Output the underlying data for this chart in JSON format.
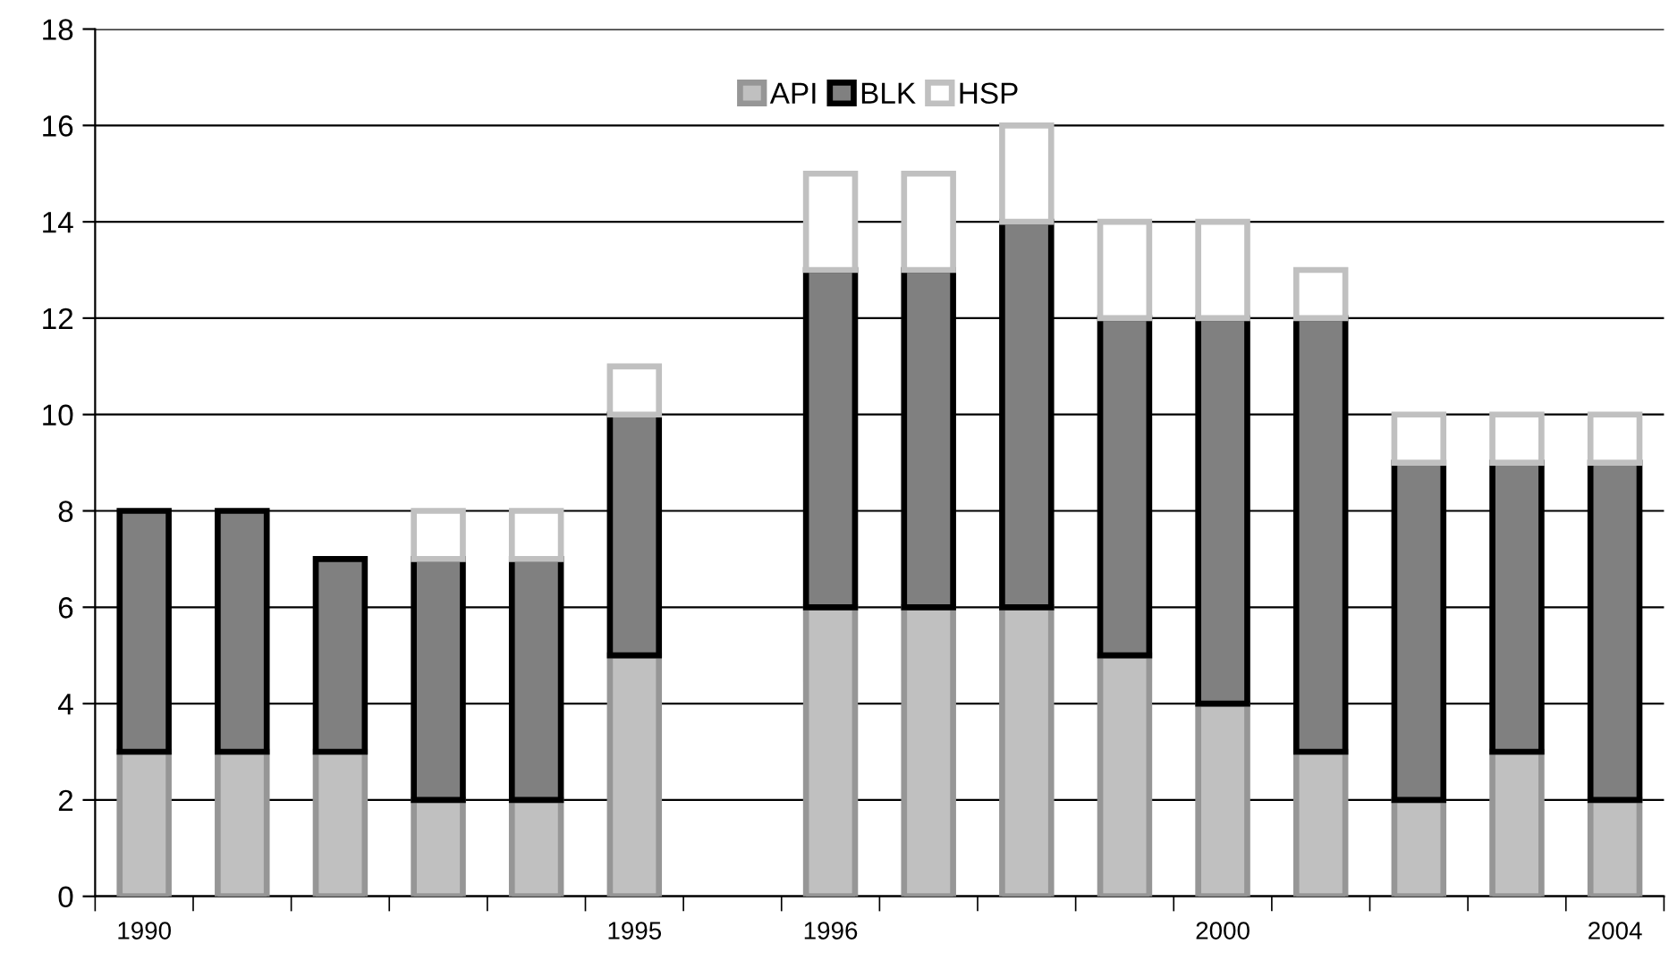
{
  "chart_data": {
    "type": "bar",
    "stacked": true,
    "categories": [
      "1990",
      null,
      null,
      null,
      null,
      "1995",
      null,
      "1996",
      null,
      null,
      null,
      "2000",
      null,
      null,
      null,
      "2004"
    ],
    "series": [
      {
        "name": "API",
        "color": "#c0c0c0",
        "values": [
          3,
          3,
          3,
          2,
          2,
          5,
          null,
          6,
          6,
          6,
          5,
          4,
          3,
          2,
          3,
          2
        ]
      },
      {
        "name": "BLK",
        "color": "#808080",
        "values": [
          5,
          5,
          4,
          5,
          5,
          5,
          null,
          7,
          7,
          8,
          7,
          8,
          9,
          7,
          6,
          7
        ]
      },
      {
        "name": "HSP",
        "color": "#ffffff",
        "values": [
          null,
          null,
          null,
          1,
          1,
          1,
          null,
          2,
          2,
          2,
          2,
          2,
          1,
          1,
          1,
          1
        ]
      }
    ],
    "ylim": [
      0,
      18
    ],
    "yticks": [
      0,
      2,
      4,
      6,
      8,
      10,
      12,
      14,
      16,
      18
    ],
    "grid": "y",
    "legend": "top"
  }
}
